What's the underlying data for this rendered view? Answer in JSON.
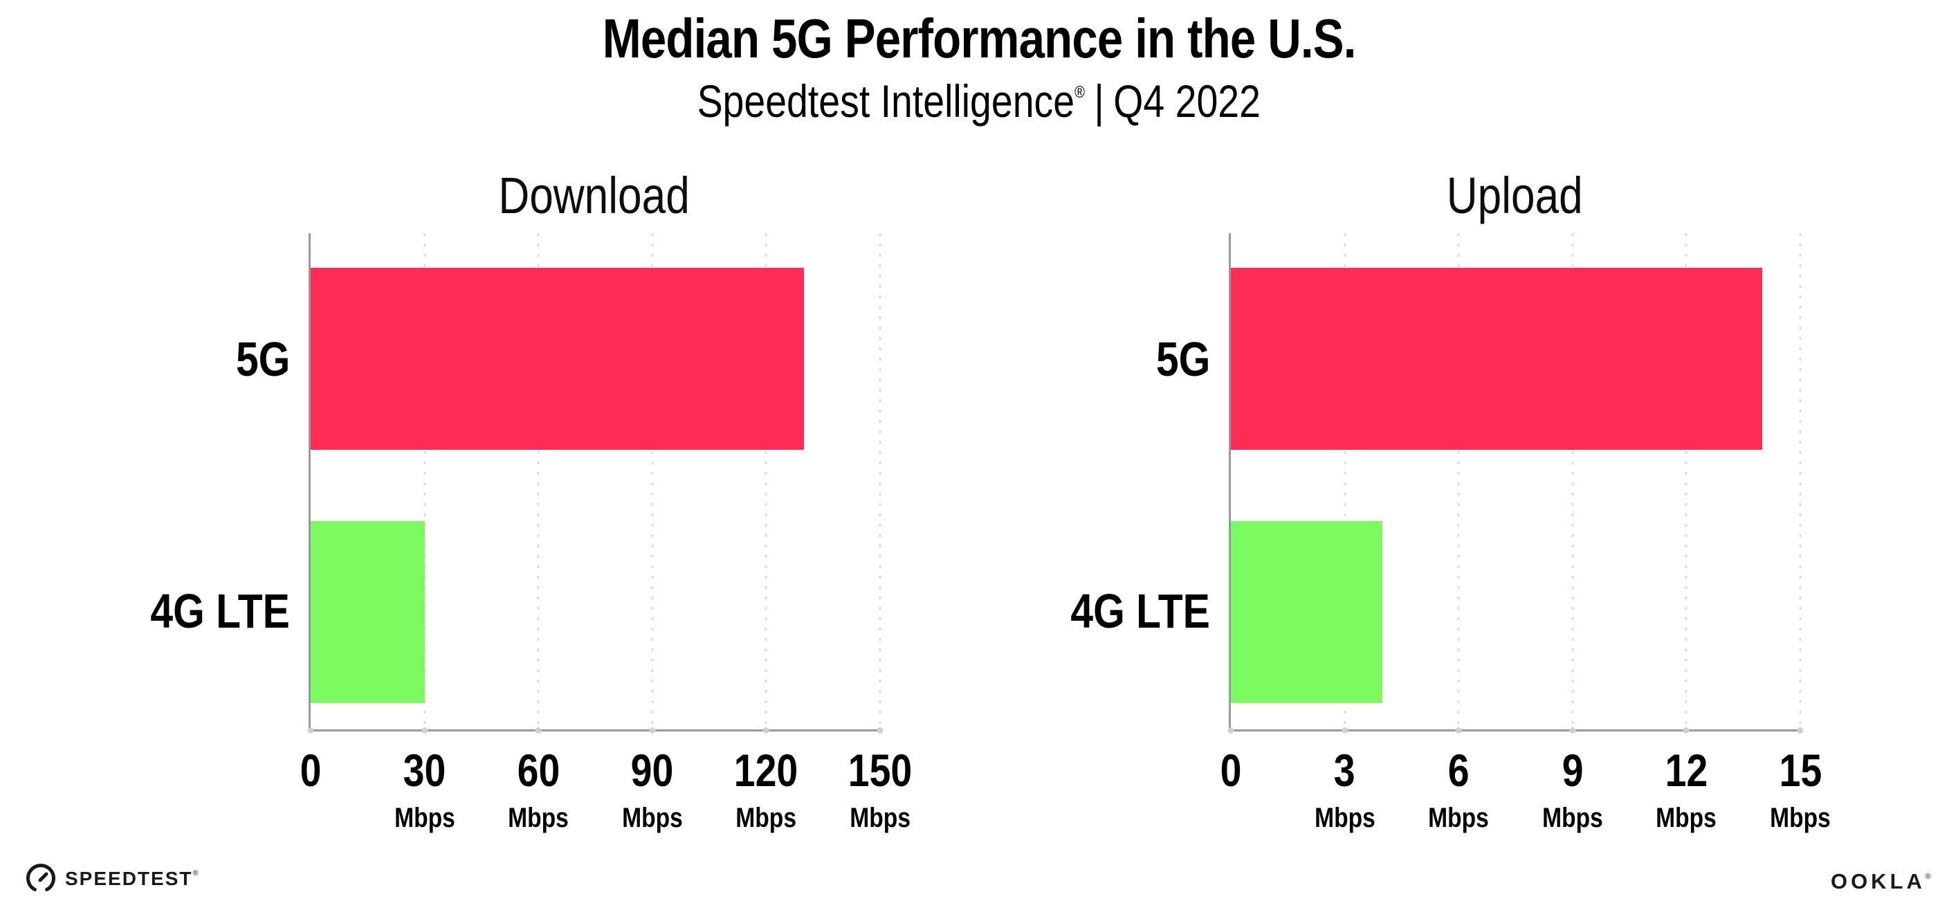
{
  "header": {
    "title": "Median 5G Performance in the U.S.",
    "subtitle": {
      "brand": "Speedtest Intelligence",
      "reg": "®",
      "separator": "|",
      "period": "Q4 2022"
    }
  },
  "chart_data": [
    {
      "type": "bar",
      "orientation": "horizontal",
      "title": "Download",
      "categories": [
        "5G",
        "4G LTE"
      ],
      "values": [
        130,
        30
      ],
      "unit": "Mbps",
      "xlim": [
        0,
        150
      ],
      "xticks": [
        0,
        30,
        60,
        90,
        120,
        150
      ],
      "tick_unit_label": "Mbps",
      "bar_colors": [
        "#ff2d55",
        "#7dfa5f"
      ],
      "grid": "dotted-vertical-at-ticks",
      "legend": "none"
    },
    {
      "type": "bar",
      "orientation": "horizontal",
      "title": "Upload",
      "categories": [
        "5G",
        "4G LTE"
      ],
      "values": [
        14,
        4
      ],
      "unit": "Mbps",
      "xlim": [
        0,
        15
      ],
      "xticks": [
        0,
        3,
        6,
        9,
        12,
        15
      ],
      "tick_unit_label": "Mbps",
      "bar_colors": [
        "#ff2d55",
        "#7dfa5f"
      ],
      "grid": "dotted-vertical-at-ticks",
      "legend": "none"
    }
  ],
  "footer": {
    "speedtest_text": "SPEEDTEST",
    "speedtest_reg": "®",
    "speedtest_icon": "speedtest-gauge-icon",
    "ookla_text": "OOKLA",
    "ookla_reg": "®"
  },
  "colors": {
    "background": "#ffffff",
    "bar_5g": "#ff2d55",
    "bar_4g_lte": "#7dfa5f",
    "axis": "#97999f",
    "gridline_dots": "#dbdce6",
    "text": "#000000",
    "logo": "#1a1a1a"
  }
}
